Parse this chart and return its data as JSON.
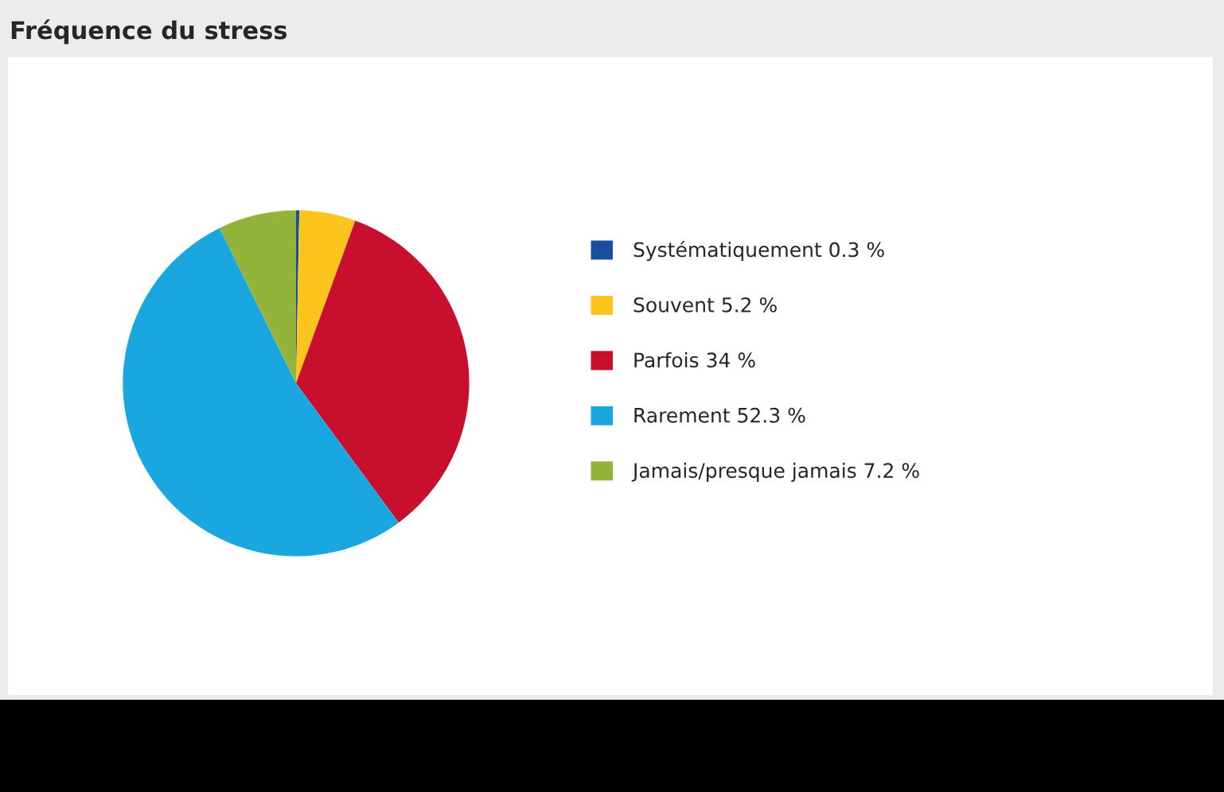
{
  "chart_data": {
    "type": "pie",
    "title": "Fréquence du stress",
    "categories": [
      "Systématiquement",
      "Souvent",
      "Parfois",
      "Rarement",
      "Jamais/presque jamais"
    ],
    "values": [
      0.3,
      5.2,
      34,
      52.3,
      7.2
    ],
    "value_labels": [
      "0.3 %",
      "5.2 %",
      "34 %",
      "52.3 %",
      "7.2 %"
    ],
    "colors": [
      "#1a4fa0",
      "#fcc41c",
      "#c8102e",
      "#1aa7e0",
      "#93b33a"
    ],
    "legend": "right"
  }
}
